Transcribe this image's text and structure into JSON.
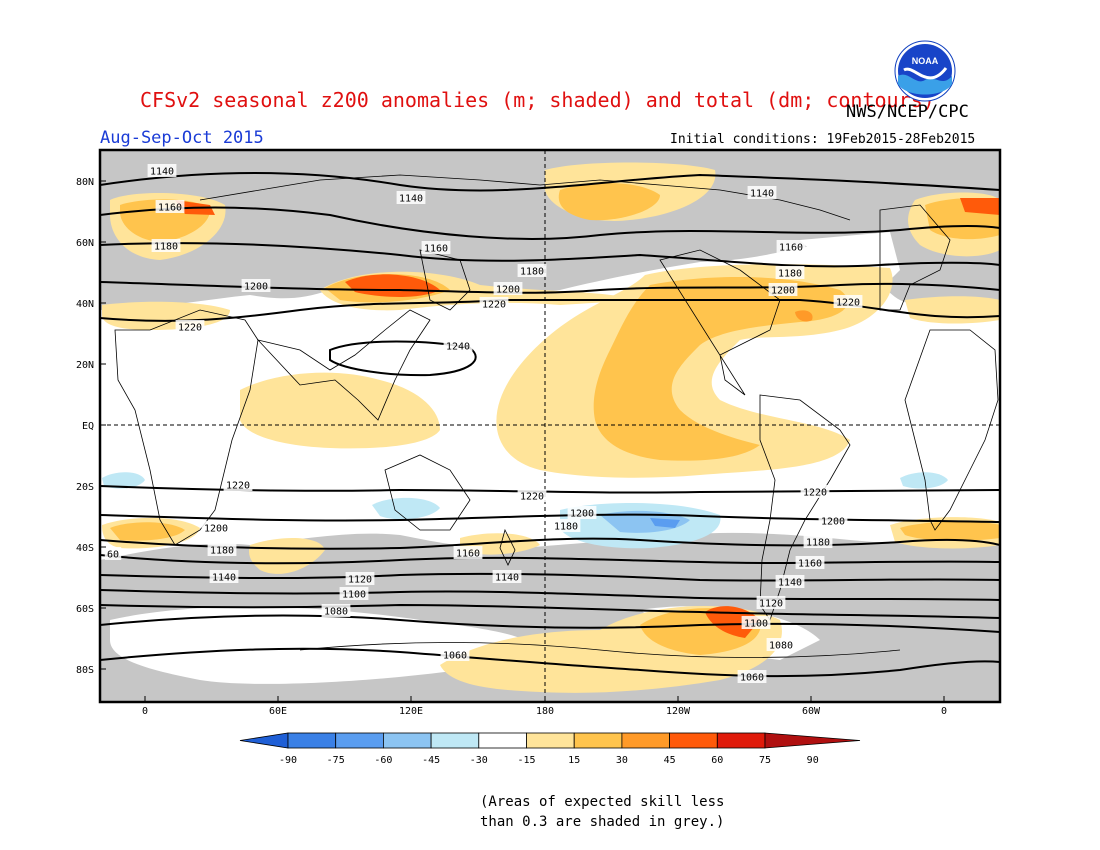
{
  "title": "CFSv2 seasonal z200 anomalies (m; shaded) and total (dm; contours)",
  "agency": "NWS/NCEP/CPC",
  "period": "Aug-Sep-Oct 2015",
  "initial_conditions": "Initial conditions: 19Feb2015-28Feb2015",
  "logo_text": "NOAA",
  "note_line1": "(Areas of expected skill less",
  "note_line2": "than 0.3 are shaded in grey.)",
  "lat_labels": [
    "80N",
    "60N",
    "40N",
    "20N",
    "EQ",
    "20S",
    "40S",
    "60S",
    "80S"
  ],
  "lon_labels": [
    "0",
    "60E",
    "120E",
    "180",
    "120W",
    "60W",
    "0"
  ],
  "colorbar": {
    "ticks": [
      "-90",
      "-75",
      "-60",
      "-45",
      "-30",
      "-15",
      "15",
      "30",
      "45",
      "60",
      "75",
      "90"
    ],
    "colors": [
      "#1f5fd6",
      "#3a80e6",
      "#5a9df0",
      "#8cc4f2",
      "#bfe8f5",
      "#ffffff",
      "#ffe49a",
      "#ffc44d",
      "#ff9a28",
      "#ff5a0a",
      "#e01a0a",
      "#b01010"
    ]
  },
  "contour_labels": [
    {
      "text": "1140"
    },
    {
      "text": "1140"
    },
    {
      "text": "1140"
    },
    {
      "text": "1160"
    },
    {
      "text": "1160"
    },
    {
      "text": "1160"
    },
    {
      "text": "1180"
    },
    {
      "text": "1180"
    },
    {
      "text": "1180"
    },
    {
      "text": "1200"
    },
    {
      "text": "1200"
    },
    {
      "text": "1200"
    },
    {
      "text": "1220"
    },
    {
      "text": "1220"
    },
    {
      "text": "1220"
    },
    {
      "text": "1240"
    },
    {
      "text": "1220"
    },
    {
      "text": "1220"
    },
    {
      "text": "1220"
    },
    {
      "text": "1200"
    },
    {
      "text": "1200"
    },
    {
      "text": "1200"
    },
    {
      "text": "1180"
    },
    {
      "text": "1180"
    },
    {
      "text": "1180"
    },
    {
      "text": "1160"
    },
    {
      "text": "1160"
    },
    {
      "text": "1140"
    },
    {
      "text": "1140"
    },
    {
      "text": "1140"
    },
    {
      "text": "1120"
    },
    {
      "text": "1120"
    },
    {
      "text": "1100"
    },
    {
      "text": "1100"
    },
    {
      "text": "1080"
    },
    {
      "text": "1080"
    },
    {
      "text": "1060"
    },
    {
      "text": "1060"
    },
    {
      "text": "60"
    }
  ]
}
